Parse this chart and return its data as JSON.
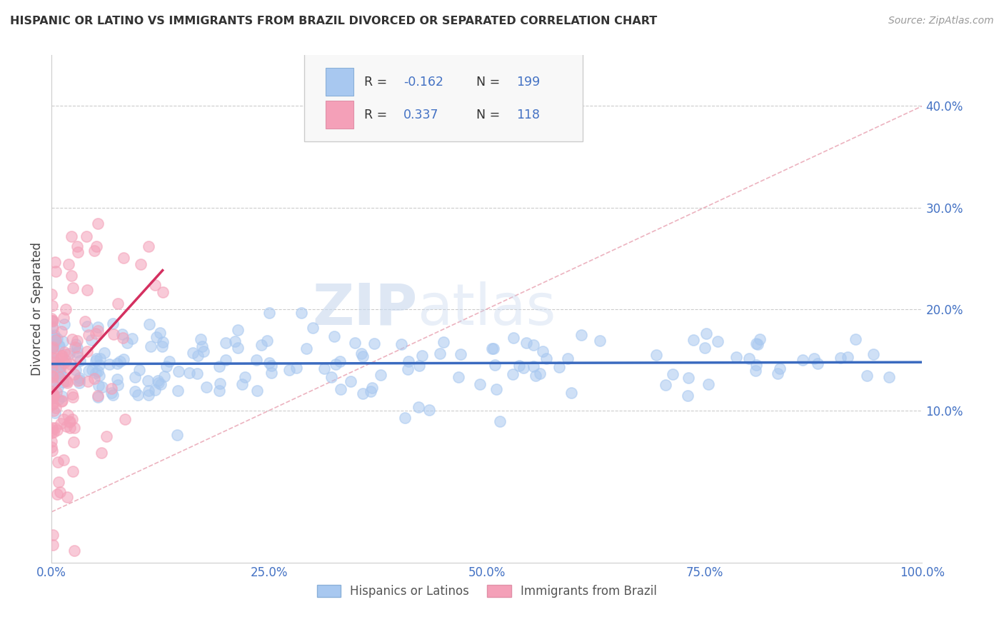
{
  "title": "HISPANIC OR LATINO VS IMMIGRANTS FROM BRAZIL DIVORCED OR SEPARATED CORRELATION CHART",
  "source": "Source: ZipAtlas.com",
  "ylabel": "Divorced or Separated",
  "watermark_zip": "ZIP",
  "watermark_atlas": "atlas",
  "blue_R": -0.162,
  "blue_N": 199,
  "pink_R": 0.337,
  "pink_N": 118,
  "blue_color": "#a8c8f0",
  "pink_color": "#f4a0b8",
  "blue_line_color": "#3a6abf",
  "pink_line_color": "#d43060",
  "blue_legend": "Hispanics or Latinos",
  "pink_legend": "Immigrants from Brazil",
  "diag_color": "#f0a0b0",
  "xlim": [
    0.0,
    1.0
  ],
  "ylim": [
    -0.05,
    0.45
  ],
  "x_ticks": [
    0.0,
    0.25,
    0.5,
    0.75,
    1.0
  ],
  "x_tick_labels": [
    "0.0%",
    "25.0%",
    "50.0%",
    "75.0%",
    "100.0%"
  ],
  "y_ticks": [
    0.1,
    0.2,
    0.3,
    0.4
  ],
  "y_tick_labels": [
    "10.0%",
    "20.0%",
    "30.0%",
    "40.0%"
  ],
  "background_color": "#ffffff",
  "grid_color": "#cccccc",
  "title_color": "#333333",
  "tick_color": "#4472c4",
  "stat_number_color": "#4472c4"
}
